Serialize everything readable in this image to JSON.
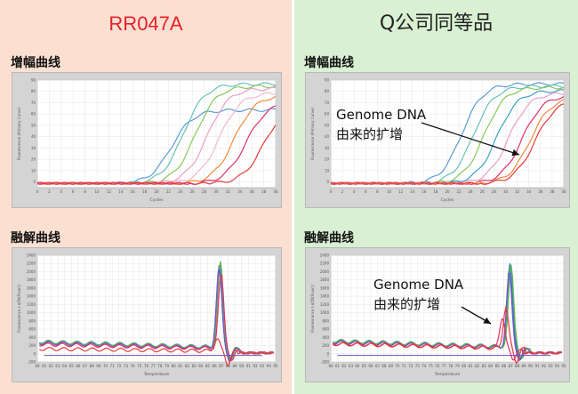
{
  "columns": [
    {
      "title": "RR047A",
      "amplification_label": "增幅曲线",
      "melting_label": "融解曲线"
    },
    {
      "title": "Q公司同等品",
      "amplification_label": "增幅曲线",
      "melting_label": "融解曲线",
      "annotation_line1": "Genome DNA",
      "annotation_line2": "由来的扩增"
    }
  ],
  "chart_data": [
    {
      "type": "line",
      "panel": "RR047A",
      "chart": "amplification",
      "xlabel": "Cycles",
      "ylabel": "Fluorescence (Primary Curve)",
      "xlim": [
        0,
        40
      ],
      "ylim": [
        -5,
        90
      ],
      "xticks": [
        0,
        2,
        4,
        6,
        8,
        10,
        12,
        14,
        16,
        18,
        20,
        22,
        24,
        26,
        28,
        30,
        32,
        34,
        36,
        38,
        40
      ],
      "yticks": [
        0,
        10,
        20,
        30,
        40,
        50,
        60,
        70,
        80,
        90
      ],
      "series": [
        {
          "color": "#5b9bd5",
          "midpoint": 22.5,
          "plateau": 65
        },
        {
          "color": "#66c2b5",
          "midpoint": 24.5,
          "plateau": 88
        },
        {
          "color": "#86c95a",
          "midpoint": 26.5,
          "plateau": 86
        },
        {
          "color": "#e8a0c8",
          "midpoint": 28.5,
          "plateau": 84
        },
        {
          "color": "#f2b8c8",
          "midpoint": 30.5,
          "plateau": 80
        },
        {
          "color": "#f08a3a",
          "midpoint": 33,
          "plateau": 78
        },
        {
          "color": "#e0306a",
          "midpoint": 35,
          "plateau": 72
        },
        {
          "color": "#e23a3a",
          "midpoint": 38,
          "plateau": 70
        }
      ]
    },
    {
      "type": "line",
      "panel": "RR047A",
      "chart": "melting",
      "xlabel": "Temperature",
      "ylabel": "Fluorescence (-d/Dt(Fluor))",
      "xlim": [
        60,
        95
      ],
      "ylim": [
        -200,
        2400
      ],
      "xticks": [
        60,
        61,
        62,
        63,
        64,
        65,
        66,
        67,
        68,
        69,
        70,
        71,
        72,
        73,
        74,
        75,
        76,
        77,
        78,
        79,
        80,
        81,
        82,
        83,
        84,
        85,
        86,
        87,
        88,
        89,
        90,
        91,
        92,
        93,
        94,
        95
      ],
      "yticks": [
        -200,
        0,
        200,
        400,
        600,
        800,
        1000,
        1200,
        1400,
        1600,
        1800,
        2000,
        2200,
        2400
      ],
      "series": [
        {
          "color": "#2a6fd6",
          "peak_temp": 86.7,
          "peak": 2250,
          "baseline": 280
        },
        {
          "color": "#33a8a0",
          "peak_temp": 86.8,
          "peak": 2300,
          "baseline": 300
        },
        {
          "color": "#6ab04c",
          "peak_temp": 86.9,
          "peak": 2350,
          "baseline": 290
        },
        {
          "color": "#7a55c8",
          "peak_temp": 86.7,
          "peak": 2150,
          "baseline": 260
        },
        {
          "color": "#e0306a",
          "peak_temp": 87.0,
          "peak": 2050,
          "baseline": 230
        },
        {
          "color": "#e23a3a",
          "peak_temp": 86.4,
          "peak": 420,
          "baseline": 120
        }
      ]
    },
    {
      "type": "line",
      "panel": "Q公司同等品",
      "chart": "amplification",
      "xlabel": "Cycles",
      "ylabel": "Fluorescence (Primary Curve)",
      "xlim": [
        0,
        40
      ],
      "ylim": [
        -5,
        90
      ],
      "xticks": [
        0,
        2,
        4,
        6,
        8,
        10,
        12,
        14,
        16,
        18,
        20,
        22,
        24,
        26,
        28,
        30,
        32,
        34,
        36,
        38,
        40
      ],
      "yticks": [
        0,
        10,
        20,
        30,
        40,
        50,
        60,
        70,
        80,
        90
      ],
      "series": [
        {
          "color": "#5b9bd5",
          "midpoint": 22.5,
          "plateau": 88
        },
        {
          "color": "#66c2b5",
          "midpoint": 24.5,
          "plateau": 86
        },
        {
          "color": "#86c95a",
          "midpoint": 26.3,
          "plateau": 85
        },
        {
          "color": "#3aa0c8",
          "midpoint": 28.5,
          "plateau": 82
        },
        {
          "color": "#e8a0c8",
          "midpoint": 30.5,
          "plateau": 80
        },
        {
          "color": "#e0306a",
          "midpoint": 32.8,
          "plateau": 78
        },
        {
          "color": "#f08a3a",
          "midpoint": 34.2,
          "plateau": 76
        },
        {
          "color": "#e23a3a",
          "midpoint": 35,
          "plateau": 74
        }
      ]
    },
    {
      "type": "line",
      "panel": "Q公司同等品",
      "chart": "melting",
      "xlabel": "Temperature",
      "ylabel": "Fluorescence (-d/Dt(Fluor))",
      "xlim": [
        60,
        95
      ],
      "ylim": [
        -200,
        2400
      ],
      "xticks": [
        60,
        61,
        62,
        63,
        64,
        65,
        66,
        67,
        68,
        69,
        70,
        71,
        72,
        73,
        74,
        75,
        76,
        77,
        78,
        79,
        80,
        81,
        82,
        83,
        84,
        85,
        86,
        87,
        88,
        89,
        90,
        91,
        92,
        93,
        94,
        95
      ],
      "yticks": [
        -200,
        0,
        200,
        400,
        600,
        800,
        1000,
        1200,
        1400,
        1600,
        1800,
        2000,
        2200,
        2400
      ],
      "series": [
        {
          "color": "#2a6fd6",
          "peak_temp": 86.9,
          "peak": 2300,
          "baseline": 300
        },
        {
          "color": "#33a8a0",
          "peak_temp": 87.0,
          "peak": 2350,
          "baseline": 320
        },
        {
          "color": "#6ab04c",
          "peak_temp": 87.1,
          "peak": 2280,
          "baseline": 310
        },
        {
          "color": "#7a55c8",
          "peak_temp": 86.8,
          "peak": 2100,
          "baseline": 280
        },
        {
          "color": "#e0306a",
          "peak_temp": 85.8,
          "peak": 1000,
          "baseline": 250
        },
        {
          "color": "#e23a3a",
          "peak_temp": 86.3,
          "peak": 1250,
          "baseline": 240
        }
      ]
    }
  ]
}
